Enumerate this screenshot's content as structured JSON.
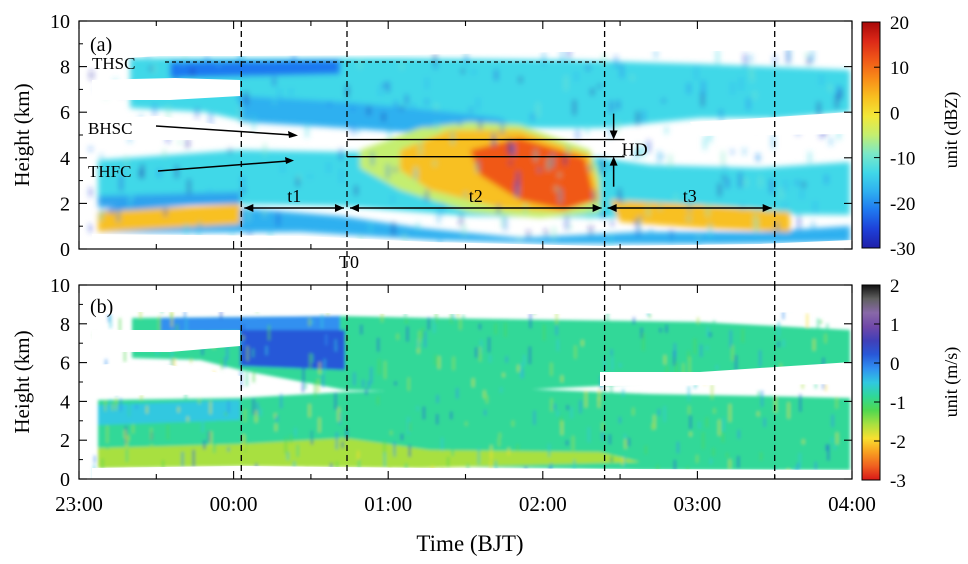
{
  "figure": {
    "xlabel": "Time (BJT)",
    "x_ticks": [
      "23:00",
      "00:00",
      "01:00",
      "02:00",
      "03:00",
      "04:00"
    ]
  },
  "chart_data": [
    {
      "type": "heatmap",
      "panel_label": "(a)",
      "ylabel": "Height (km)",
      "xlim": [
        "23:00",
        "04:00"
      ],
      "ylim": [
        0,
        10
      ],
      "y_ticks": [
        0,
        2,
        4,
        6,
        8,
        10
      ],
      "colorbar": {
        "label": "unit (dBZ)",
        "range": [
          -30,
          20
        ],
        "ticks": [
          20,
          10,
          0,
          -10,
          -20,
          -30
        ],
        "colors": [
          "#1f1fa8",
          "#1e40d8",
          "#1f78f0",
          "#2fb0f0",
          "#40d8e8",
          "#7ae8c8",
          "#c4ee70",
          "#f2e838",
          "#f8c020",
          "#f88c18",
          "#f05818",
          "#dc2818",
          "#a80808"
        ]
      },
      "vertical_markers": [
        "00:03",
        "00:44",
        "02:24",
        "03:30"
      ],
      "markers": [
        "T0"
      ],
      "levels": [
        {
          "name": "THSC",
          "height_km": 8.2
        },
        {
          "name": "BHSC",
          "height_km": 4.8
        },
        {
          "name": "THFC",
          "height_km": 4.05
        }
      ],
      "gap_label": "HD",
      "intervals": [
        {
          "name": "t1",
          "from": "00:03",
          "to": "00:44",
          "height_km": 1.8
        },
        {
          "name": "t2",
          "from": "00:44",
          "to": "02:24",
          "height_km": 1.8
        },
        {
          "name": "t3",
          "from": "02:24",
          "to": "03:30",
          "height_km": 1.8
        }
      ]
    },
    {
      "type": "heatmap",
      "panel_label": "(b)",
      "ylabel": "Height (km)",
      "xlim": [
        "23:00",
        "04:00"
      ],
      "ylim": [
        0,
        10
      ],
      "y_ticks": [
        0,
        2,
        4,
        6,
        8,
        10
      ],
      "colorbar": {
        "label": "unit (m/s)",
        "range": [
          -3,
          2
        ],
        "ticks": [
          2,
          1,
          0,
          -1,
          -2,
          -3
        ],
        "colors": [
          "#d81818",
          "#f06020",
          "#f8a020",
          "#f8e030",
          "#a8e040",
          "#50d850",
          "#30d898",
          "#30c8e0",
          "#3090f0",
          "#2858d8",
          "#4040b8",
          "#7048a8",
          "#8868a8",
          "#606060",
          "#101010"
        ]
      },
      "vertical_markers": [
        "00:03",
        "00:44",
        "02:24",
        "03:30"
      ]
    }
  ]
}
